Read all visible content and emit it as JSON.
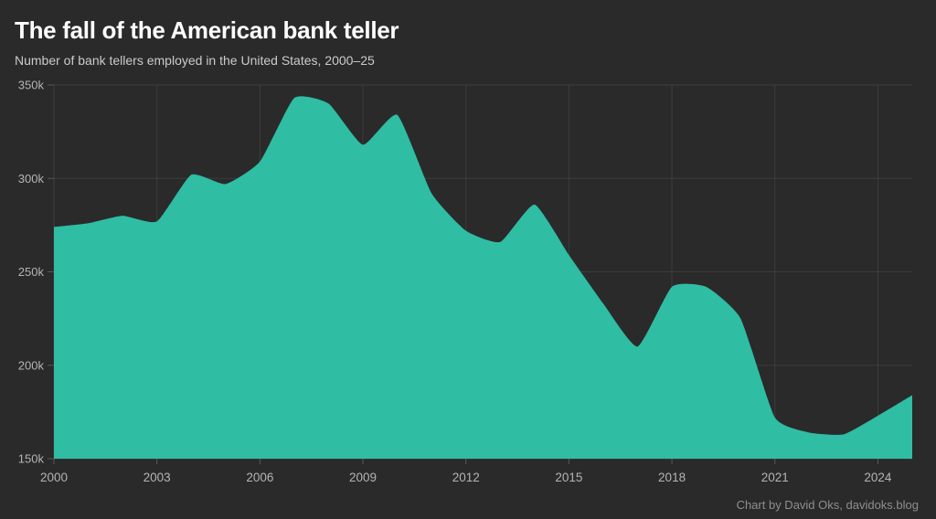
{
  "header": {
    "title": "The fall of the American bank teller",
    "subtitle": "Number of bank tellers employed in the United States, 2000–25"
  },
  "footer": {
    "attribution": "Chart by David Oks, davidoks.blog"
  },
  "colors": {
    "background": "#2a2a2a",
    "area": "#2fbda4",
    "grid": "#3d3d3d",
    "tick_mark": "#585858",
    "tick_text": "#b4b4b4",
    "title": "#ffffff",
    "subtitle": "#cbcbcb",
    "attribution": "#8e8e8e"
  },
  "chart_data": {
    "type": "area",
    "title": "The fall of the American bank teller",
    "subtitle": "Number of bank tellers employed in the United States, 2000–25",
    "unit": "thousands of bank tellers employed",
    "x": [
      2000,
      2001,
      2002,
      2003,
      2004,
      2005,
      2006,
      2007,
      2008,
      2009,
      2010,
      2011,
      2012,
      2013,
      2014,
      2015,
      2016,
      2017,
      2018,
      2019,
      2020,
      2021,
      2022,
      2023,
      2024,
      2025
    ],
    "values_thousands": [
      274,
      276,
      280,
      277,
      302,
      297,
      309,
      343,
      340,
      318,
      334,
      292,
      272,
      266,
      286,
      259,
      233,
      210,
      242,
      242,
      225,
      172,
      164,
      163,
      173,
      184
    ],
    "xlim": [
      2000,
      2025
    ],
    "ylim_thousands": [
      150,
      350
    ],
    "x_ticks": [
      2000,
      2003,
      2006,
      2009,
      2012,
      2015,
      2018,
      2021,
      2024
    ],
    "x_tick_labels": [
      "2000",
      "2003",
      "2006",
      "2009",
      "2012",
      "2015",
      "2018",
      "2021",
      "2024"
    ],
    "y_ticks_thousands": [
      150,
      200,
      250,
      300,
      350
    ],
    "y_tick_labels": [
      "150k",
      "200k",
      "250k",
      "300k",
      "350k"
    ],
    "grid": true,
    "legend": "none"
  }
}
